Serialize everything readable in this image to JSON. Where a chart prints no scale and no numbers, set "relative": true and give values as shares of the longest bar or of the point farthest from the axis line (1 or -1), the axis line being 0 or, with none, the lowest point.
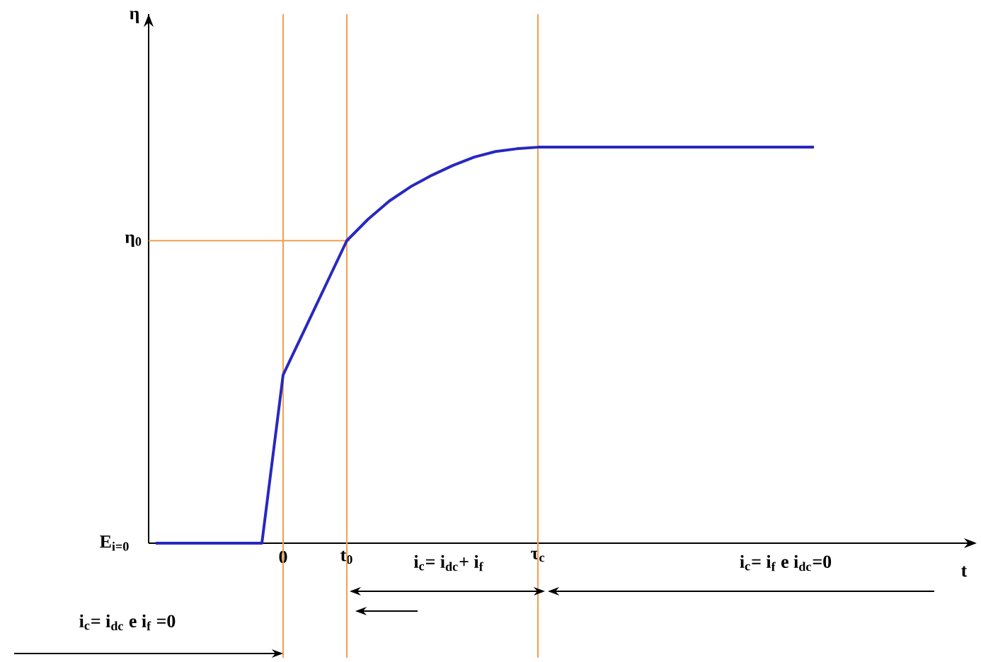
{
  "chart_data": {
    "type": "line",
    "relative": true,
    "categories": [
      null,
      null,
      null,
      null,
      null,
      null,
      "0",
      null,
      null,
      "t$_{0}$",
      null,
      null,
      null,
      null,
      null,
      null,
      null,
      null,
      "τ$_{c}$",
      null,
      null,
      null,
      null,
      null,
      null,
      null,
      null,
      null,
      null,
      null,
      null,
      null
    ],
    "series": [
      {
        "color": "#2828c0",
        "values": [
          0,
          0,
          0,
          0,
          0,
          0,
          0.425,
          0.538,
          0.651,
          0.764,
          0.818,
          0.864,
          0.9,
          0.929,
          0.954,
          0.975,
          0.989,
          0.996,
          1,
          1,
          1,
          1,
          1,
          1,
          1,
          1,
          1,
          1,
          1,
          1,
          1,
          1
        ]
      }
    ],
    "ref_lines": [
      {
        "axis": "y",
        "value": 0.764,
        "label": "η$_{0}$",
        "color": "#f0a050"
      },
      {
        "axis": "x",
        "value": "0",
        "color": "#f0a050"
      },
      {
        "axis": "x",
        "value": "t$_{0}$",
        "color": "#f0a050"
      },
      {
        "axis": "x",
        "value": "τ$_{c}$",
        "color": "#f0a050"
      }
    ],
    "annotations": [
      "i$_{c}$= i$_{dc}$ e i$_{f}$ =0",
      "i$_{c}$= i$_{dc}$+ i$_{f}$",
      "i$_{c}$= i$_{f}$ e i$_{dc}$=0",
      "E$_{i=0}$",
      "η",
      "t"
    ],
    "marker": "none",
    "line_style": "solid"
  }
}
